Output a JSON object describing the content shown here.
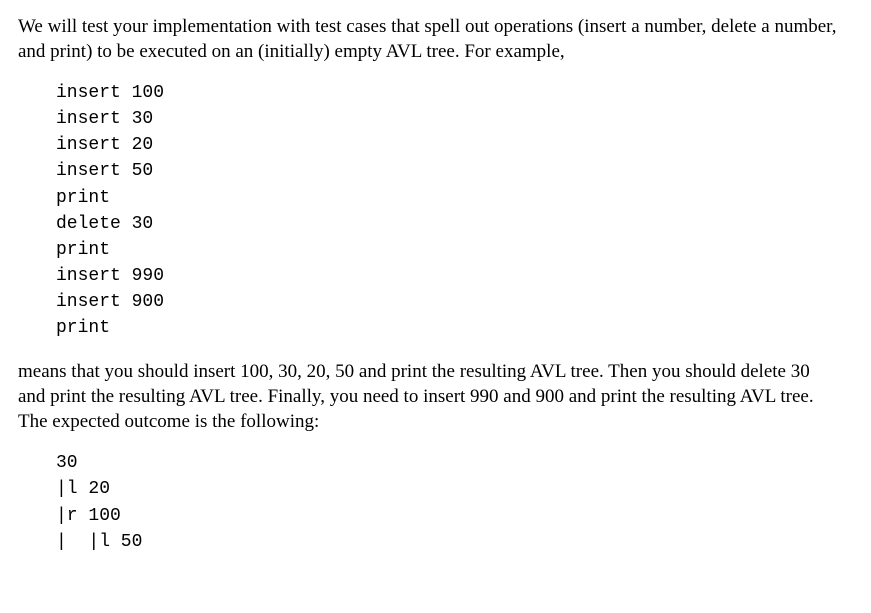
{
  "paragraphs": {
    "p1": "We will test your implementation with test cases that spell out operations (insert a number, delete a number, and print) to be executed on an (initially) empty AVL tree. For example,",
    "p2": "means that you should insert 100, 30, 20, 50 and print the resulting AVL tree. Then you should delete 30 and print the resulting AVL tree. Finally, you need to insert 990 and 900 and print the resulting AVL tree. The expected outcome is the following:"
  },
  "code1": {
    "lines": "insert 100\ninsert 30\ninsert 20\ninsert 50\nprint\ndelete 30\nprint\ninsert 990\ninsert 900\nprint"
  },
  "code2": {
    "lines": "30\n|l 20\n|r 100\n|  |l 50"
  },
  "style": {
    "body_font": "Times New Roman",
    "body_font_size_pt": 14,
    "code_font": "Courier New",
    "code_font_size_pt": 13,
    "text_color": "#000000",
    "background_color": "#ffffff"
  }
}
